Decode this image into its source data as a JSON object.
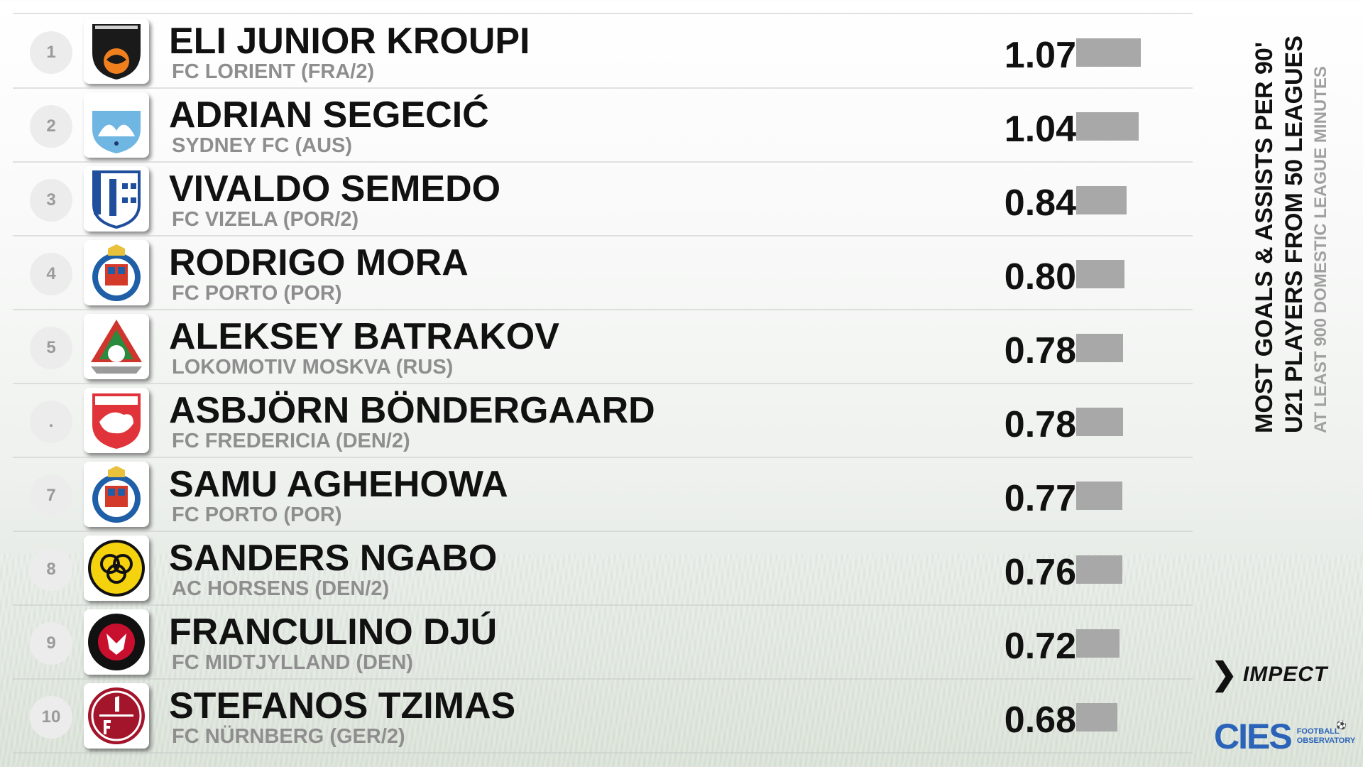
{
  "side_title": {
    "line1": "MOST GOALS & ASSISTS PER 90'",
    "line2": "U21 PLAYERS FROM 50 LEAGUES",
    "line3": "AT LEAST 900 DOMESTIC LEAGUE MINUTES"
  },
  "logos": {
    "impect_mark": "❯",
    "impect": "IMPECT",
    "cies": "CIES",
    "cies_sub1": "FOOTBALL",
    "cies_sub2": "OBSERVATORY"
  },
  "colors": {
    "bar": "#a8a8a8",
    "rank_circle": "#ececec",
    "club_text": "#8e8e8e",
    "cies_blue": "#2a63b8"
  },
  "chart_data": {
    "type": "bar",
    "orientation": "horizontal",
    "title": "MOST GOALS & ASSISTS PER 90'",
    "subtitle": "U21 PLAYERS FROM 50 LEAGUES",
    "note": "AT LEAST 900 DOMESTIC LEAGUE MINUTES",
    "xlim": [
      0,
      1.35
    ],
    "grid": false,
    "rows": [
      {
        "rank": "1",
        "player": "ELI JUNIOR KROUPI",
        "club": "FC LORIENT (FRA/2)",
        "value": 1.07,
        "value_label": "1.07",
        "badge": "fc-lorient-badge"
      },
      {
        "rank": "2",
        "player": "ADRIAN SEGECIĆ",
        "club": "SYDNEY FC (AUS)",
        "value": 1.04,
        "value_label": "1.04",
        "badge": "sydney-fc-badge"
      },
      {
        "rank": "3",
        "player": "VIVALDO SEMEDO",
        "club": "FC VIZELA (POR/2)",
        "value": 0.84,
        "value_label": "0.84",
        "badge": "fc-vizela-badge"
      },
      {
        "rank": "4",
        "player": "RODRIGO MORA",
        "club": "FC PORTO (POR)",
        "value": 0.8,
        "value_label": "0.80",
        "badge": "fc-porto-badge"
      },
      {
        "rank": "5",
        "player": "ALEKSEY BATRAKOV",
        "club": "LOKOMOTIV MOSKVA (RUS)",
        "value": 0.78,
        "value_label": "0.78",
        "badge": "lokomotiv-moskva-badge"
      },
      {
        "rank": ".",
        "player": "ASBJÖRN BÖNDERGAARD",
        "club": "FC FREDERICIA (DEN/2)",
        "value": 0.78,
        "value_label": "0.78",
        "badge": "fc-fredericia-badge"
      },
      {
        "rank": "7",
        "player": "SAMU AGHEHOWA",
        "club": "FC PORTO (POR)",
        "value": 0.77,
        "value_label": "0.77",
        "badge": "fc-porto-badge"
      },
      {
        "rank": "8",
        "player": "SANDERS NGABO",
        "club": "AC HORSENS (DEN/2)",
        "value": 0.76,
        "value_label": "0.76",
        "badge": "ac-horsens-badge"
      },
      {
        "rank": "9",
        "player": "FRANCULINO DJÚ",
        "club": "FC MIDTJYLLAND (DEN)",
        "value": 0.72,
        "value_label": "0.72",
        "badge": "fc-midtjylland-badge"
      },
      {
        "rank": "10",
        "player": "STEFANOS TZIMAS",
        "club": "FC NÜRNBERG (GER/2)",
        "value": 0.68,
        "value_label": "0.68",
        "badge": "fc-nurnberg-badge"
      }
    ]
  }
}
